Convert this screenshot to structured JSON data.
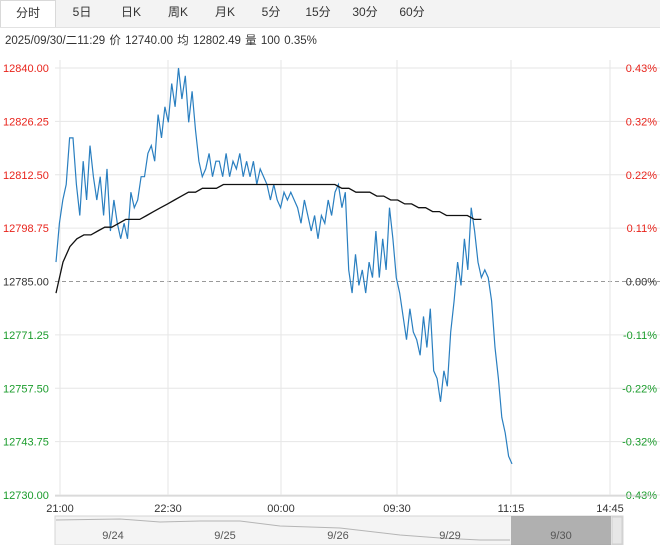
{
  "tabs": [
    {
      "label": "分时",
      "active": true
    },
    {
      "label": "5日",
      "active": false
    },
    {
      "label": "日K",
      "active": false
    },
    {
      "label": "周K",
      "active": false
    },
    {
      "label": "月K",
      "active": false
    },
    {
      "label": "5分",
      "active": false
    },
    {
      "label": "15分",
      "active": false
    },
    {
      "label": "30分",
      "active": false
    },
    {
      "label": "60分",
      "active": false
    }
  ],
  "info": {
    "datetime": "2025/09/30/二11:29",
    "price_label": "价",
    "price": "12740.00",
    "avg_label": "均",
    "avg": "12802.49",
    "vol_label": "量",
    "vol": "100",
    "pct": "0.35%"
  },
  "colors": {
    "up": "#e8241c",
    "down": "#1b9c2c",
    "neutral": "#333333",
    "price_line": "#2a7fc0",
    "avg_line": "#111111",
    "grid": "#e6e6e6"
  },
  "chart_data": {
    "type": "line",
    "y_left_ticks": [
      "12840.00",
      "12826.25",
      "12812.50",
      "12798.75",
      "12785.00",
      "12771.25",
      "12757.50",
      "12743.75",
      "12730.00"
    ],
    "y_right_ticks": [
      "0.43%",
      "0.32%",
      "0.22%",
      "0.11%",
      "0.00%",
      "-0.11%",
      "-0.22%",
      "-0.32%",
      "-0.43%"
    ],
    "x_ticks": [
      "21:00",
      "22:30",
      "00:00",
      "09:30",
      "11:15",
      "14:45"
    ],
    "ylim": [
      12730,
      12840
    ],
    "base": 12785,
    "price": [
      12790,
      12800,
      12806,
      12810,
      12822,
      12822,
      12810,
      12802,
      12816,
      12806,
      12820,
      12812,
      12806,
      12812,
      12802,
      12814,
      12798,
      12806,
      12800,
      12796,
      12800,
      12796,
      12808,
      12804,
      12806,
      12812,
      12812,
      12818,
      12820,
      12816,
      12828,
      12822,
      12830,
      12826,
      12836,
      12830,
      12840,
      12832,
      12838,
      12826,
      12834,
      12824,
      12816,
      12812,
      12814,
      12818,
      12812,
      12816,
      12816,
      12812,
      12818,
      12812,
      12816,
      12814,
      12818,
      12812,
      12816,
      12812,
      12816,
      12810,
      12814,
      12812,
      12810,
      12806,
      12810,
      12806,
      12804,
      12808,
      12806,
      12808,
      12806,
      12804,
      12800,
      12806,
      12802,
      12798,
      12802,
      12796,
      12802,
      12800,
      12806,
      12802,
      12808,
      12810,
      12804,
      12808,
      12788,
      12782,
      12792,
      12784,
      12788,
      12782,
      12790,
      12786,
      12798,
      12786,
      12796,
      12788,
      12804,
      12796,
      12786,
      12782,
      12776,
      12770,
      12778,
      12772,
      12770,
      12766,
      12776,
      12768,
      12778,
      12762,
      12760,
      12754,
      12762,
      12758,
      12772,
      12780,
      12790,
      12784,
      12796,
      12788,
      12804,
      12798,
      12790,
      12786,
      12788,
      12786,
      12780,
      12768,
      12760,
      12750,
      12746,
      12740,
      12738
    ],
    "avg": [
      12782,
      12790,
      12794,
      12796,
      12797,
      12797,
      12798,
      12799,
      12799,
      12800,
      12801,
      12801,
      12801,
      12802,
      12803,
      12804,
      12805,
      12806,
      12807,
      12808,
      12808,
      12809,
      12809,
      12809,
      12810,
      12810,
      12810,
      12810,
      12810,
      12810,
      12810,
      12810,
      12810,
      12810,
      12810,
      12810,
      12810,
      12810,
      12810,
      12810,
      12810,
      12809,
      12809,
      12808,
      12808,
      12808,
      12807,
      12807,
      12806,
      12806,
      12805,
      12805,
      12804,
      12804,
      12803,
      12803,
      12802,
      12802,
      12802,
      12802,
      12801,
      12801
    ],
    "avg_end_index": 125
  },
  "nav": {
    "dates": [
      "9/24",
      "9/25",
      "9/26",
      "9/29",
      "9/30"
    ]
  }
}
